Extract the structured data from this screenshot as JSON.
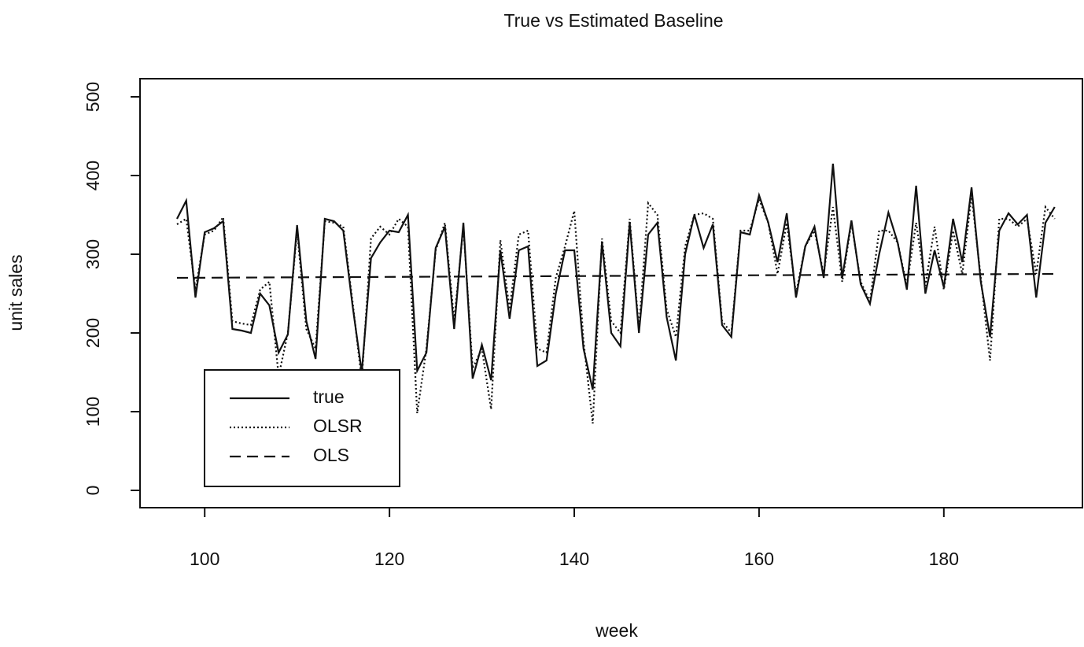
{
  "chart_data": {
    "type": "line",
    "title": "True vs Estimated Baseline",
    "x_label": "week",
    "y_label": "unit sales",
    "x": [
      97,
      98,
      99,
      100,
      101,
      102,
      103,
      104,
      105,
      106,
      107,
      108,
      109,
      110,
      111,
      112,
      113,
      114,
      115,
      116,
      117,
      118,
      119,
      120,
      121,
      122,
      123,
      124,
      125,
      126,
      127,
      128,
      129,
      130,
      131,
      132,
      133,
      134,
      135,
      136,
      137,
      138,
      139,
      140,
      141,
      142,
      143,
      144,
      145,
      146,
      147,
      148,
      149,
      150,
      151,
      152,
      153,
      154,
      155,
      156,
      157,
      158,
      159,
      160,
      161,
      162,
      163,
      164,
      165,
      166,
      167,
      168,
      169,
      170,
      171,
      172,
      173,
      174,
      175,
      176,
      177,
      178,
      179,
      180,
      181,
      182,
      183,
      184,
      185,
      186,
      187,
      188,
      189,
      190,
      191,
      192
    ],
    "series": [
      {
        "name": "true",
        "color": "#111111",
        "dash": "solid",
        "values": [
          345,
          368,
          245,
          328,
          333,
          342,
          205,
          203,
          200,
          250,
          235,
          175,
          198,
          337,
          215,
          167,
          345,
          342,
          330,
          235,
          150,
          295,
          315,
          330,
          328,
          350,
          152,
          175,
          308,
          335,
          205,
          340,
          142,
          185,
          140,
          305,
          218,
          305,
          310,
          158,
          165,
          250,
          305,
          305,
          180,
          128,
          315,
          200,
          183,
          340,
          200,
          325,
          340,
          220,
          165,
          300,
          350,
          308,
          338,
          210,
          195,
          328,
          325,
          375,
          340,
          290,
          352,
          245,
          310,
          335,
          270,
          415,
          270,
          343,
          262,
          237,
          300,
          353,
          315,
          255,
          387,
          250,
          305,
          258,
          345,
          290,
          385,
          265,
          195,
          330,
          352,
          338,
          350,
          245,
          340,
          360
        ]
      },
      {
        "name": "OLSR",
        "color": "#111111",
        "dash": "dotted",
        "values": [
          338,
          345,
          255,
          325,
          330,
          347,
          215,
          212,
          210,
          255,
          265,
          145,
          200,
          330,
          205,
          180,
          342,
          340,
          335,
          240,
          140,
          320,
          335,
          325,
          345,
          335,
          98,
          180,
          305,
          340,
          215,
          335,
          155,
          180,
          103,
          318,
          230,
          325,
          330,
          180,
          175,
          270,
          310,
          355,
          190,
          85,
          320,
          215,
          200,
          345,
          205,
          365,
          350,
          230,
          195,
          310,
          350,
          352,
          345,
          215,
          200,
          330,
          330,
          370,
          340,
          275,
          340,
          250,
          310,
          330,
          275,
          360,
          265,
          340,
          265,
          240,
          330,
          330,
          315,
          260,
          340,
          260,
          335,
          255,
          330,
          275,
          375,
          270,
          165,
          345,
          345,
          335,
          345,
          275,
          360,
          345
        ]
      },
      {
        "name": "OLS",
        "color": "#111111",
        "dash": "dashed",
        "x": [
          97,
          192
        ],
        "values": [
          270,
          275
        ]
      }
    ],
    "xlim": [
      93,
      195
    ],
    "ylim": [
      -22,
      523
    ],
    "xticks": [
      100,
      120,
      140,
      160,
      180
    ],
    "yticks": [
      0,
      100,
      200,
      300,
      400,
      500
    ]
  }
}
